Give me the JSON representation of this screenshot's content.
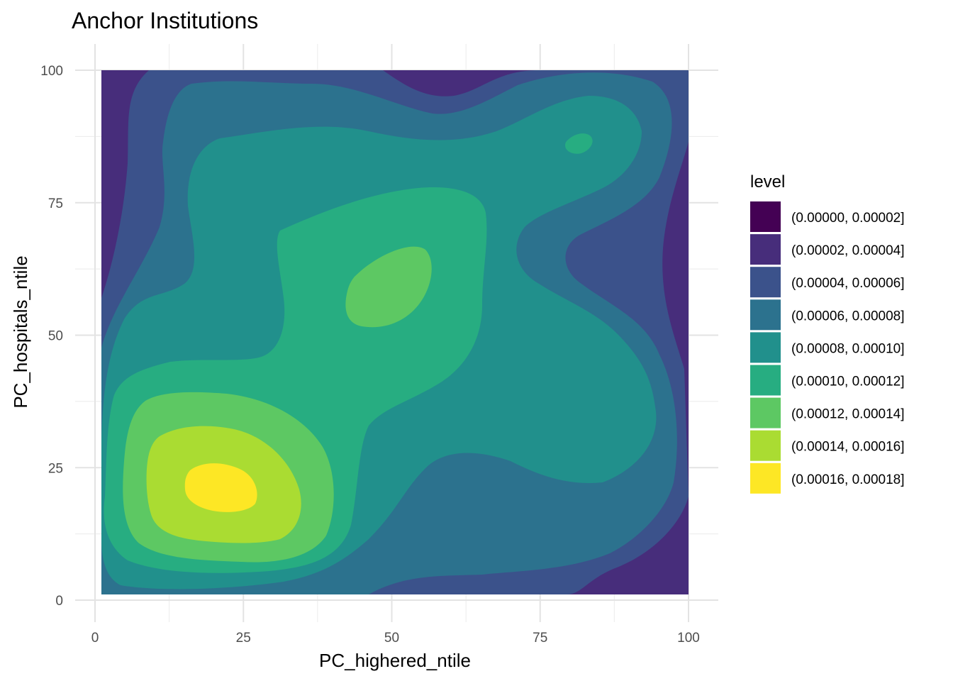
{
  "chart_data": {
    "type": "contour",
    "title": "Anchor Institutions",
    "xlabel": "PC_highered_ntile",
    "ylabel": "PC_hospitals_ntile",
    "xlim": [
      0,
      100
    ],
    "ylim": [
      0,
      100
    ],
    "x_ticks": [
      "0",
      "25",
      "50",
      "75",
      "100"
    ],
    "y_ticks": [
      "0",
      "25",
      "50",
      "75",
      "100"
    ],
    "grid": true,
    "legend": {
      "title": "level",
      "position": "right",
      "entries": [
        {
          "label": "(0.00000, 0.00002]",
          "color": "#440154"
        },
        {
          "label": "(0.00002, 0.00004]",
          "color": "#472D7B"
        },
        {
          "label": "(0.00004, 0.00006]",
          "color": "#3B528B"
        },
        {
          "label": "(0.00006, 0.00008]",
          "color": "#2C728E"
        },
        {
          "label": "(0.00008, 0.00010]",
          "color": "#21908C"
        },
        {
          "label": "(0.00010, 0.00012]",
          "color": "#27AD81"
        },
        {
          "label": "(0.00012, 0.00014]",
          "color": "#5DC863"
        },
        {
          "label": "(0.00014, 0.00016]",
          "color": "#AADC32"
        },
        {
          "label": "(0.00016, 0.00018]",
          "color": "#FDE725"
        }
      ]
    },
    "density_peaks": [
      {
        "x": 21,
        "y": 22,
        "level": "(0.00016, 0.00018]"
      },
      {
        "x": 51,
        "y": 58,
        "level": "(0.00012, 0.00014]"
      },
      {
        "x": 82,
        "y": 86,
        "level": "(0.00010, 0.00012]"
      }
    ]
  }
}
